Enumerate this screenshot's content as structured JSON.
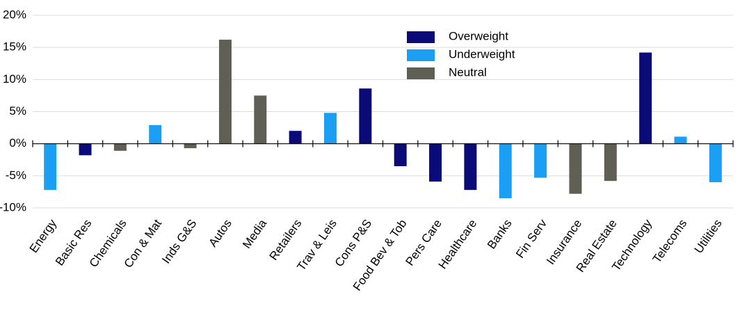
{
  "chart_data": {
    "type": "bar",
    "categories": [
      "Energy",
      "Basic Res",
      "Chemicals",
      "Con & Mat",
      "Inds G&S",
      "Autos",
      "Media",
      "Retailers",
      "Trav & Leis",
      "Cons P&S",
      "Food Bev & Tob",
      "Pers Care",
      "Healthcare",
      "Banks",
      "Fin Serv",
      "Insurance",
      "Real Estate",
      "Technology",
      "Telecoms",
      "Utilities"
    ],
    "series": [
      {
        "name": "Overweight",
        "color": "#0a0a78",
        "values": [
          null,
          -1.8,
          null,
          null,
          null,
          null,
          null,
          2.0,
          null,
          8.6,
          -3.5,
          -5.9,
          -7.2,
          null,
          null,
          null,
          null,
          14.2,
          null,
          null
        ]
      },
      {
        "name": "Underweight",
        "color": "#1a9ff5",
        "values": [
          -7.2,
          null,
          null,
          2.9,
          null,
          null,
          null,
          null,
          4.8,
          null,
          null,
          null,
          null,
          -8.5,
          -5.3,
          null,
          null,
          null,
          1.1,
          -6.0
        ]
      },
      {
        "name": "Neutral",
        "color": "#605f55",
        "values": [
          null,
          null,
          -1.1,
          null,
          -0.7,
          16.2,
          7.5,
          null,
          null,
          null,
          null,
          null,
          null,
          null,
          null,
          -7.8,
          -5.8,
          null,
          null,
          null
        ]
      }
    ],
    "ylim": [
      -10,
      20
    ],
    "yticks": [
      {
        "value": -10,
        "label": "-10%"
      },
      {
        "value": -5,
        "label": "-5%"
      },
      {
        "value": 0,
        "label": "0%"
      },
      {
        "value": 5,
        "label": "5%"
      },
      {
        "value": 10,
        "label": "10%"
      },
      {
        "value": 15,
        "label": "15%"
      },
      {
        "value": 20,
        "label": "20%"
      }
    ],
    "grid": true
  }
}
